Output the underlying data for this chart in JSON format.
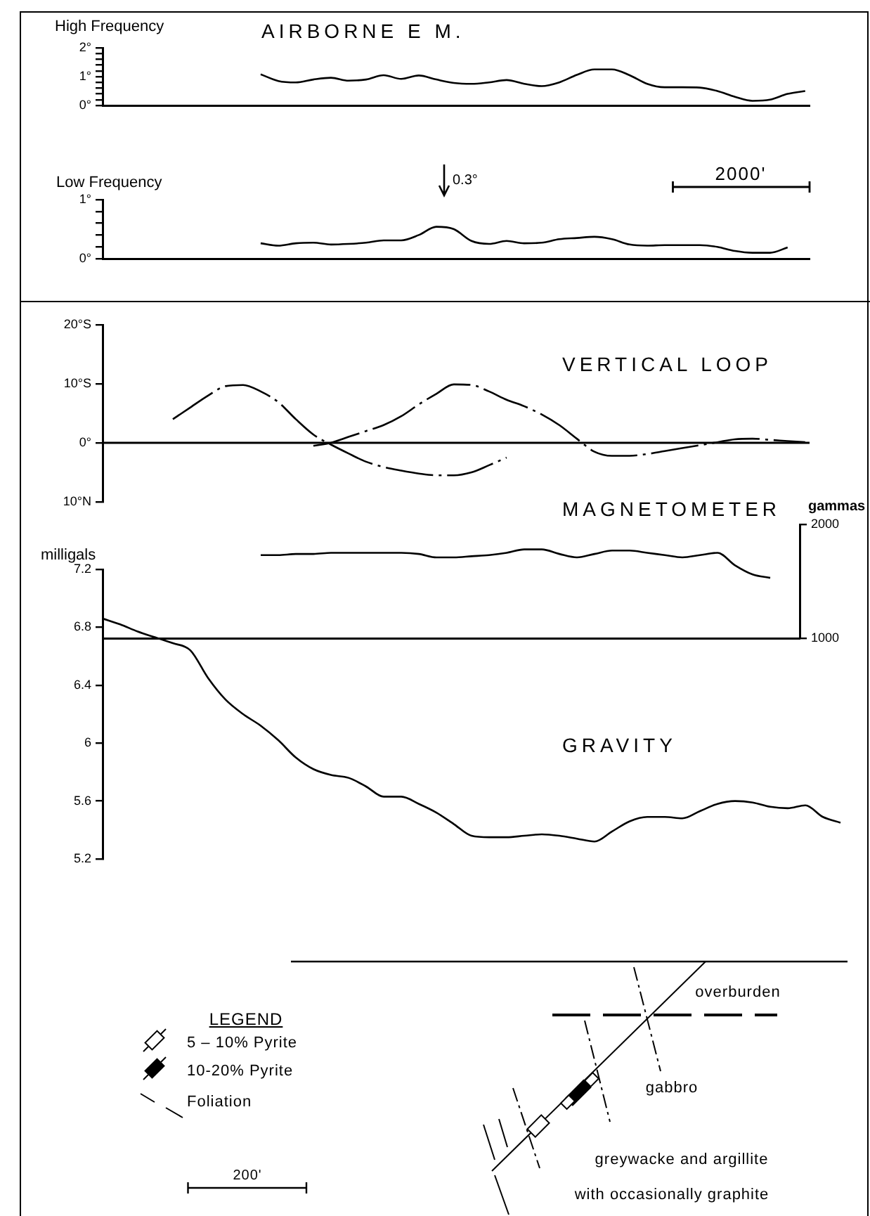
{
  "chart_data": [
    {
      "type": "line",
      "title": "AIRBORNE E M.",
      "ylabel": "High Frequency",
      "categories": [
        null,
        null,
        null,
        null,
        null,
        null,
        null,
        null,
        null,
        null,
        null,
        null,
        null,
        null,
        null,
        null,
        null,
        null,
        null,
        null,
        null,
        null,
        null,
        null,
        null,
        null,
        null,
        null,
        null,
        null,
        null,
        null,
        null,
        null,
        null,
        null,
        null,
        null,
        null,
        null,
        null,
        null,
        null,
        null
      ],
      "values": [
        null,
        null,
        null,
        null,
        null,
        null,
        null,
        null,
        null,
        1.08,
        0.85,
        0.8,
        0.9,
        0.96,
        0.86,
        0.9,
        1.05,
        0.92,
        1.04,
        0.9,
        0.78,
        0.75,
        0.8,
        0.88,
        0.75,
        0.67,
        0.8,
        1.06,
        1.25,
        1.25,
        1.05,
        0.75,
        0.63,
        0.63,
        0.62,
        0.5,
        0.3,
        0.16,
        0.2,
        0.4,
        0.5,
        null,
        null,
        null
      ],
      "color": "#000000",
      "ylim": [
        0,
        2
      ],
      "yticks": [
        {
          "value": 0,
          "label": "0°"
        },
        {
          "value": 0.2,
          "label": null
        },
        {
          "value": 0.4,
          "label": null
        },
        {
          "value": 0.6,
          "label": null
        },
        {
          "value": 0.8,
          "label": null
        },
        {
          "value": 1,
          "label": "1°"
        },
        {
          "value": 1.2,
          "label": null
        },
        {
          "value": 1.4,
          "label": null
        },
        {
          "value": 1.6,
          "label": null
        },
        {
          "value": 1.8,
          "label": null
        },
        {
          "value": 2,
          "label": "2°"
        }
      ],
      "grid": false,
      "marker": "none",
      "line_style": "solid",
      "tick_labels": "y"
    },
    {
      "type": "line",
      "ylabel": "Low Frequency",
      "annotations": [
        "0.3°",
        "2000'"
      ],
      "categories": [
        null,
        null,
        null,
        null,
        null,
        null,
        null,
        null,
        null,
        null,
        null,
        null,
        null,
        null,
        null,
        null,
        null,
        null,
        null,
        null,
        null,
        null,
        null,
        null,
        null,
        null,
        null,
        null,
        null,
        null,
        null,
        null,
        null,
        null,
        null,
        null,
        null,
        null,
        null,
        null,
        null,
        null,
        null,
        null
      ],
      "values": [
        null,
        null,
        null,
        null,
        null,
        null,
        null,
        null,
        null,
        0.26,
        0.22,
        0.26,
        0.27,
        0.24,
        0.25,
        0.27,
        0.31,
        0.31,
        0.4,
        0.54,
        0.5,
        0.3,
        0.25,
        0.3,
        0.26,
        0.27,
        0.33,
        0.35,
        0.37,
        0.33,
        0.24,
        0.22,
        0.23,
        0.23,
        0.23,
        0.2,
        0.13,
        0.1,
        0.1,
        0.19,
        null,
        null,
        null,
        null
      ],
      "color": "#000000",
      "ylim": [
        0,
        1
      ],
      "yticks": [
        {
          "value": 0,
          "label": "0°"
        },
        {
          "value": 0.2,
          "label": null
        },
        {
          "value": 0.4,
          "label": null
        },
        {
          "value": 0.6,
          "label": null
        },
        {
          "value": 0.8,
          "label": null
        },
        {
          "value": 1,
          "label": "1°"
        }
      ],
      "grid": false,
      "marker": "none",
      "line_style": "solid",
      "tick_labels": "y"
    },
    {
      "type": "line",
      "title": "VERTICAL LOOP",
      "categories": [
        null,
        null,
        null,
        null,
        null,
        null,
        null,
        null,
        null,
        null,
        null,
        null,
        null,
        null,
        null,
        null,
        null,
        null,
        null,
        null,
        null,
        null,
        null,
        null,
        null,
        null,
        null,
        null,
        null,
        null,
        null,
        null,
        null,
        null,
        null,
        null,
        null,
        null,
        null,
        null,
        null,
        null,
        null,
        null
      ],
      "series": [
        {
          "color": "#000000",
          "values": [
            null,
            null,
            null,
            null,
            4,
            6,
            8,
            9.6,
            9.8,
            8.7,
            6.9,
            4,
            1.4,
            -0.3,
            -1.8,
            -3.2,
            -4.1,
            -4.7,
            -5.2,
            -5.5,
            -5.5,
            -5,
            -3.8,
            -2.5,
            null,
            null,
            null,
            null,
            null,
            null,
            null,
            null,
            null,
            null,
            null,
            null,
            null,
            null,
            null,
            null,
            null,
            null,
            null,
            null
          ]
        },
        {
          "color": "#000000",
          "values": [
            null,
            null,
            null,
            null,
            null,
            null,
            null,
            null,
            null,
            null,
            null,
            null,
            -0.5,
            0,
            1,
            2,
            3,
            4.5,
            6.5,
            8.3,
            9.9,
            9.8,
            8.7,
            7.3,
            6.2,
            4.8,
            3,
            0.7,
            -1.5,
            -2.2,
            -2.2,
            -1.9,
            -1.4,
            -0.9,
            -0.4,
            0.1,
            0.6,
            0.7,
            0.5,
            0.3,
            0.1,
            null,
            null,
            null
          ]
        }
      ],
      "ylim": [
        -10,
        20
      ],
      "yticks": [
        {
          "value": -10,
          "label": "10°N"
        },
        {
          "value": 0,
          "label": "0°"
        },
        {
          "value": 10,
          "label": "10°S"
        },
        {
          "value": 20,
          "label": "20°S"
        }
      ],
      "ref_lines": [
        {
          "axis": "y",
          "value": 0,
          "color": "#000000"
        }
      ],
      "grid": false,
      "marker": "none",
      "line_style": "dashed",
      "tick_labels": "y"
    },
    {
      "type": "line",
      "title": "MAGNETOMETER",
      "ylabel": "gammas",
      "categories": [
        null,
        null,
        null,
        null,
        null,
        null,
        null,
        null,
        null,
        null,
        null,
        null,
        null,
        null,
        null,
        null,
        null,
        null,
        null,
        null,
        null,
        null,
        null,
        null,
        null,
        null,
        null,
        null,
        null,
        null,
        null,
        null,
        null,
        null,
        null,
        null,
        null,
        null,
        null,
        null,
        null,
        null,
        null,
        null
      ],
      "series": [
        {
          "color": "#000000",
          "values": [
            null,
            null,
            null,
            null,
            null,
            null,
            null,
            null,
            null,
            1730,
            1730,
            1740,
            1740,
            1750,
            1750,
            1750,
            1750,
            1750,
            1740,
            1710,
            1710,
            1720,
            1730,
            1750,
            1780,
            1780,
            1740,
            1710,
            1740,
            1770,
            1770,
            1750,
            1730,
            1710,
            1730,
            1750,
            1640,
            1560,
            1530,
            null,
            null,
            null,
            null,
            null
          ]
        }
      ],
      "ylim": [
        1000,
        2000
      ],
      "yticks": [
        1000,
        2000
      ],
      "grid": false,
      "marker": "none",
      "line_style": "solid",
      "tick_labels": "y"
    },
    {
      "type": "line",
      "title": "GRAVITY",
      "ylabel": "milligals",
      "categories": [
        null,
        null,
        null,
        null,
        null,
        null,
        null,
        null,
        null,
        null,
        null,
        null,
        null,
        null,
        null,
        null,
        null,
        null,
        null,
        null,
        null,
        null,
        null,
        null,
        null,
        null,
        null,
        null,
        null,
        null,
        null,
        null,
        null,
        null,
        null,
        null,
        null,
        null,
        null,
        null,
        null,
        null,
        null,
        null
      ],
      "values": [
        6.86,
        6.82,
        6.77,
        6.73,
        6.69,
        6.64,
        6.45,
        6.3,
        6.2,
        6.12,
        6.02,
        5.9,
        5.82,
        5.78,
        5.76,
        5.7,
        5.63,
        5.63,
        5.58,
        5.52,
        5.44,
        5.36,
        5.35,
        5.35,
        5.36,
        5.37,
        5.36,
        5.34,
        5.32,
        5.39,
        5.46,
        5.49,
        5.49,
        5.48,
        5.53,
        5.58,
        5.6,
        5.59,
        5.56,
        5.55,
        5.57,
        5.49,
        5.45,
        null
      ],
      "color": "#000000",
      "ylim": [
        5.2,
        7.2
      ],
      "yticks": [
        5.2,
        5.6,
        6.0,
        6.4,
        6.8,
        7.2
      ],
      "grid": false,
      "marker": "none",
      "line_style": "solid",
      "tick_labels": "y"
    },
    {
      "type": "other",
      "annotations": [
        "LEGEND",
        "5 – 10% Pyrite",
        "10-20% Pyrite",
        "Foliation",
        "200'",
        "overburden",
        "gabbro",
        "greywacke and argillite",
        "with occasionally graphite"
      ]
    }
  ]
}
